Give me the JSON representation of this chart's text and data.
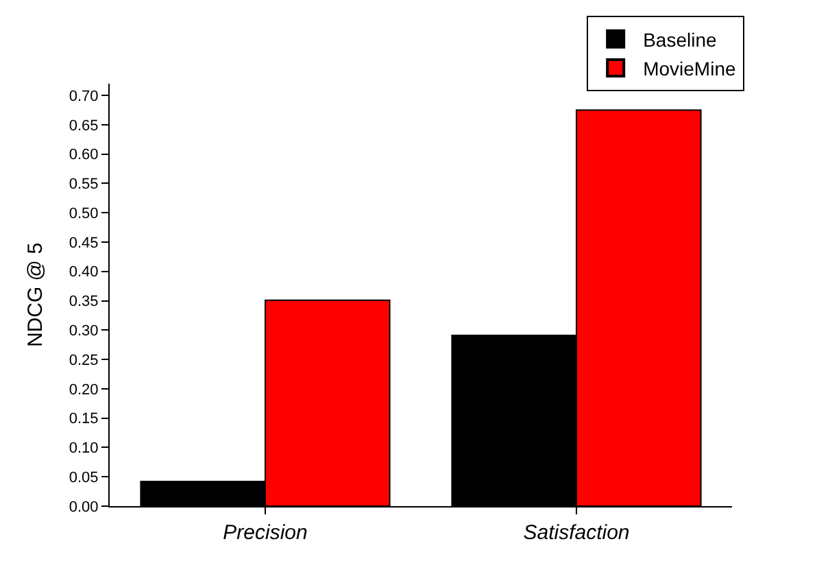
{
  "chart_data": {
    "type": "bar",
    "ylabel": "NDCG @ 5",
    "categories": [
      "Precision",
      "Satisfaction"
    ],
    "series": [
      {
        "name": "Baseline",
        "color": "#000000",
        "values": [
          0.042,
          0.291
        ]
      },
      {
        "name": "MovieMine",
        "color": "#ff0000",
        "values": [
          0.351,
          0.675
        ]
      }
    ],
    "ylim": [
      0,
      0.72
    ],
    "yticks": [
      {
        "value": 0,
        "label": "0.00"
      },
      {
        "value": 0.05,
        "label": "0.05"
      },
      {
        "value": 0.1,
        "label": "0.10"
      },
      {
        "value": 0.15,
        "label": "0.15"
      },
      {
        "value": 0.2,
        "label": "0.20"
      },
      {
        "value": 0.25,
        "label": "0.25"
      },
      {
        "value": 0.3,
        "label": "0.30"
      },
      {
        "value": 0.35,
        "label": "0.35"
      },
      {
        "value": 0.4,
        "label": "0.40"
      },
      {
        "value": 0.45,
        "label": "0.45"
      },
      {
        "value": 0.5,
        "label": "0.50"
      },
      {
        "value": 0.55,
        "label": "0.55"
      },
      {
        "value": 0.6,
        "label": "0.60"
      },
      {
        "value": 0.65,
        "label": "0.65"
      },
      {
        "value": 0.7,
        "label": "0.70"
      }
    ],
    "legend": "top right"
  }
}
